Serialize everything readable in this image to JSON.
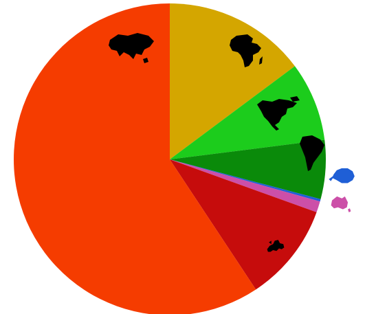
{
  "chart_data": {
    "type": "pie",
    "start_angle_deg": 0,
    "direction": "clockwise",
    "slices": [
      {
        "icon": "africa-map-icon",
        "value": 14.8,
        "color": "#d4a600",
        "icon_color": "#000000",
        "outside": false
      },
      {
        "icon": "north-america-map-icon",
        "value": 8.2,
        "color": "#1ccc1c",
        "icon_color": "#000000",
        "outside": false
      },
      {
        "icon": "south-america-map-icon",
        "value": 6.1,
        "color": "#0a8a0a",
        "icon_color": "#000000",
        "outside": false
      },
      {
        "icon": "antarctica-map-icon",
        "value": 0.25,
        "color": "#1f5fd6",
        "icon_color": "#1f5fd6",
        "outside": true
      },
      {
        "icon": "oceania-map-icon",
        "value": 1.15,
        "color": "#cc4fa8",
        "icon_color": "#cc4fa8",
        "outside": true
      },
      {
        "icon": "europe-map-icon",
        "value": 10.2,
        "color": "#c60c0c",
        "icon_color": "#000000",
        "outside": false
      },
      {
        "icon": "asia-map-icon",
        "value": 59.3,
        "color": "#f53c00",
        "icon_color": "#000000",
        "outside": false
      }
    ]
  }
}
